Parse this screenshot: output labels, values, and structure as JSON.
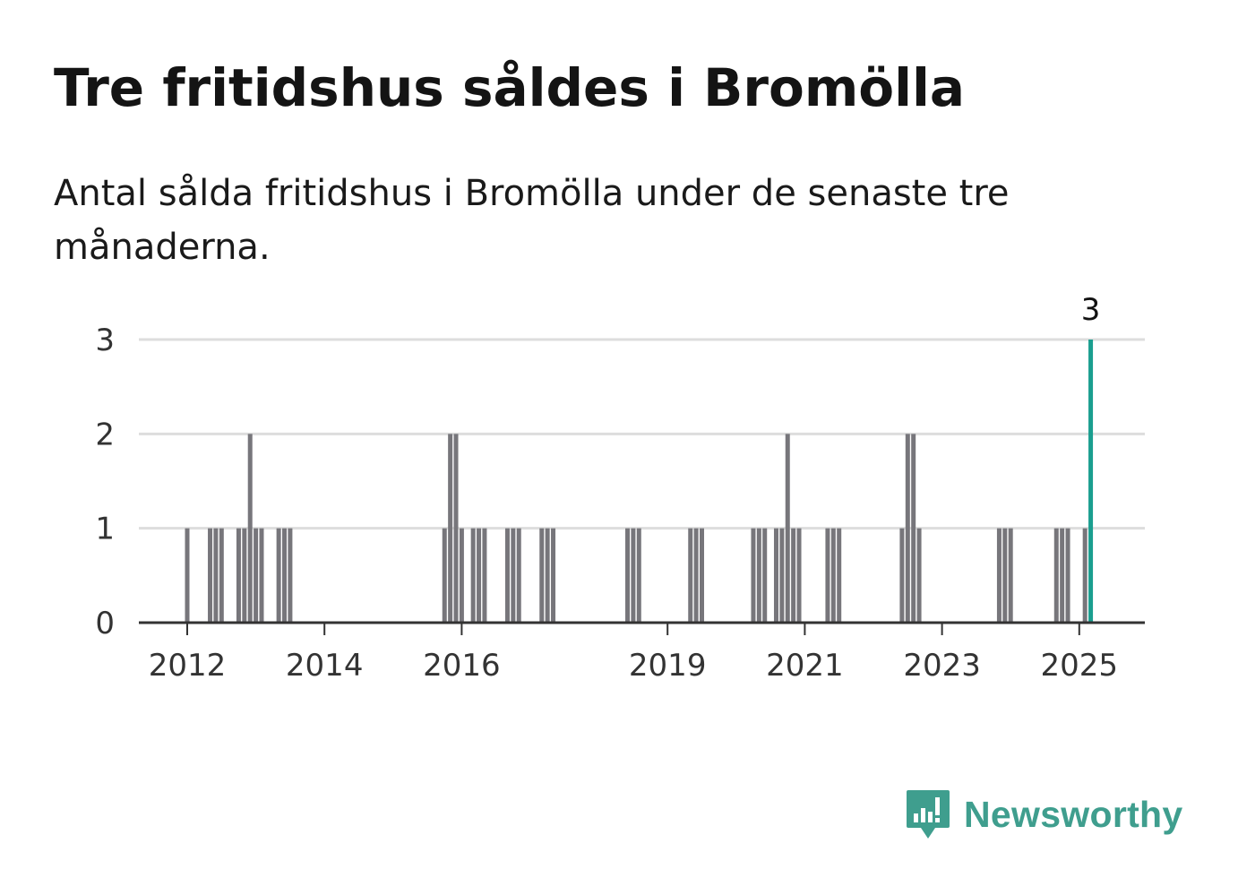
{
  "title": "Tre fritidshus såldes i Bromölla",
  "subtitle": "Antal sålda fritidshus i Bromölla under de senaste tre månaderna.",
  "brand": "Newsworthy",
  "colors": {
    "bar": "#77767b",
    "highlight": "#1a9e8f",
    "gridline": "#dddddd",
    "axis": "#333333",
    "brand": "#3f9e8e"
  },
  "chart_data": {
    "type": "bar",
    "title": "Tre fritidshus såldes i Bromölla",
    "subtitle": "Antal sålda fritidshus i Bromölla under de senaste tre månaderna.",
    "xlabel": "",
    "ylabel": "",
    "x_unit": "month",
    "x_ticks": [
      "2012",
      "2014",
      "2016",
      "2019",
      "2021",
      "2023",
      "2025"
    ],
    "y_ticks": [
      0,
      1,
      2,
      3
    ],
    "ylim": [
      0,
      3
    ],
    "grid": true,
    "highlight_last": true,
    "last_value_label": "3",
    "months": [
      "2012-01",
      "2012-05",
      "2012-06",
      "2012-07",
      "2012-10",
      "2012-11",
      "2012-12",
      "2013-01",
      "2013-02",
      "2013-05",
      "2013-06",
      "2013-07",
      "2015-10",
      "2015-11",
      "2015-12",
      "2016-01",
      "2016-03",
      "2016-04",
      "2016-05",
      "2016-09",
      "2016-10",
      "2016-11",
      "2017-03",
      "2017-04",
      "2017-05",
      "2018-06",
      "2018-07",
      "2018-08",
      "2019-05",
      "2019-06",
      "2019-07",
      "2020-04",
      "2020-05",
      "2020-06",
      "2020-08",
      "2020-09",
      "2020-10",
      "2020-11",
      "2020-12",
      "2021-05",
      "2021-06",
      "2021-07",
      "2022-06",
      "2022-07",
      "2022-08",
      "2022-09",
      "2023-11",
      "2023-12",
      "2024-01",
      "2024-09",
      "2024-10",
      "2024-11",
      "2025-02",
      "2025-03"
    ],
    "values": [
      1,
      1,
      1,
      1,
      1,
      1,
      2,
      1,
      1,
      1,
      1,
      1,
      1,
      2,
      2,
      1,
      1,
      1,
      1,
      1,
      1,
      1,
      1,
      1,
      1,
      1,
      1,
      1,
      1,
      1,
      1,
      1,
      1,
      1,
      1,
      1,
      2,
      1,
      1,
      1,
      1,
      1,
      1,
      2,
      2,
      1,
      1,
      1,
      1,
      1,
      1,
      1,
      1,
      3
    ]
  }
}
